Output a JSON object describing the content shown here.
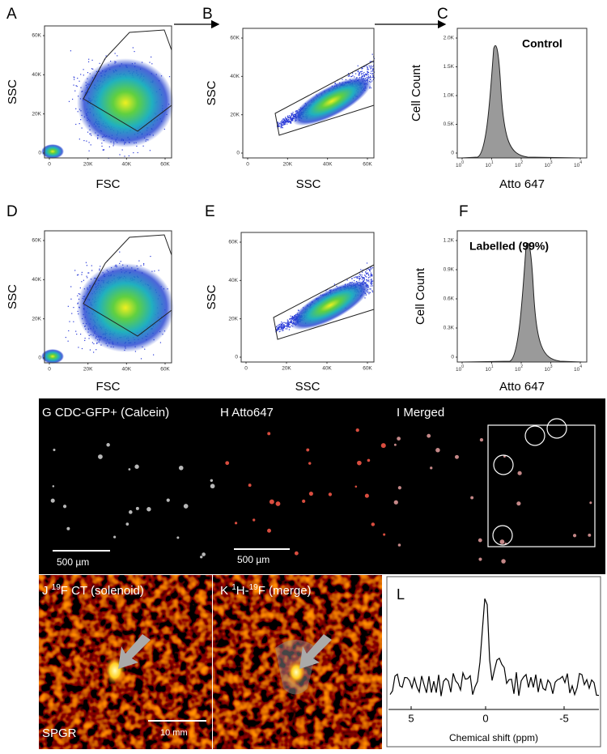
{
  "panels": {
    "A": {
      "letter": "A",
      "y_label": "SSC",
      "x_label": "FSC",
      "y_ticks": [
        "0",
        "20K",
        "40K",
        "60K"
      ],
      "x_ticks": [
        "0",
        "20K",
        "40K",
        "60K"
      ]
    },
    "B": {
      "letter": "B",
      "y_label": "SSC",
      "x_label": "SSC",
      "y_ticks": [
        "0",
        "20K",
        "40K",
        "60K"
      ],
      "x_ticks": [
        "0",
        "20K",
        "40K",
        "60K"
      ]
    },
    "C": {
      "letter": "C",
      "y_label": "Cell Count",
      "x_label": "Atto 647",
      "annotation": "Control",
      "y_ticks": [
        "0",
        "0.5K",
        "1.0K",
        "1.5K",
        "2.0K"
      ],
      "x_ticks": [
        {
          "base": "10",
          "exp": "0"
        },
        {
          "base": "10",
          "exp": "1"
        },
        {
          "base": "10",
          "exp": "2"
        },
        {
          "base": "10",
          "exp": "3"
        },
        {
          "base": "10",
          "exp": "4"
        }
      ]
    },
    "D": {
      "letter": "D",
      "y_label": "SSC",
      "x_label": "FSC",
      "y_ticks": [
        "0",
        "20K",
        "40K",
        "60K"
      ],
      "x_ticks": [
        "0",
        "20K",
        "40K",
        "60K"
      ]
    },
    "E": {
      "letter": "E",
      "y_label": "SSC",
      "x_label": "SSC",
      "y_ticks": [
        "0",
        "20K",
        "40K",
        "60K"
      ],
      "x_ticks": [
        "0",
        "20K",
        "40K",
        "60K"
      ]
    },
    "F": {
      "letter": "F",
      "y_label": "Cell Count",
      "x_label": "Atto 647",
      "annotation": "Labelled (99%)",
      "y_ticks": [
        "0",
        "0.3K",
        "0.6K",
        "0.9K",
        "1.2K"
      ],
      "x_ticks": [
        {
          "base": "10",
          "exp": "0"
        },
        {
          "base": "10",
          "exp": "1"
        },
        {
          "base": "10",
          "exp": "2"
        },
        {
          "base": "10",
          "exp": "3"
        },
        {
          "base": "10",
          "exp": "4"
        }
      ]
    }
  },
  "microscopy": {
    "G": {
      "letter": "G",
      "label": "CDC-GFP+ (Calcein)",
      "scale_bar": "500 µm"
    },
    "H": {
      "letter": "H",
      "label": "Atto647",
      "scale_bar": "500 µm"
    },
    "I": {
      "letter": "I",
      "label": "Merged"
    }
  },
  "mri": {
    "J": {
      "letter": "J",
      "sup": "19",
      "label": "F CT (solenoid)",
      "sequence": "SPGR",
      "scale_bar": "10 mm"
    },
    "K": {
      "letter": "K",
      "sup1": "1",
      "mid": "H-",
      "sup2": "19",
      "label": "F (merge)"
    }
  },
  "spectrum": {
    "letter": "L",
    "x_ticks": [
      "5",
      "0",
      "-5"
    ],
    "x_label": "Chemical shift (ppm)"
  }
}
